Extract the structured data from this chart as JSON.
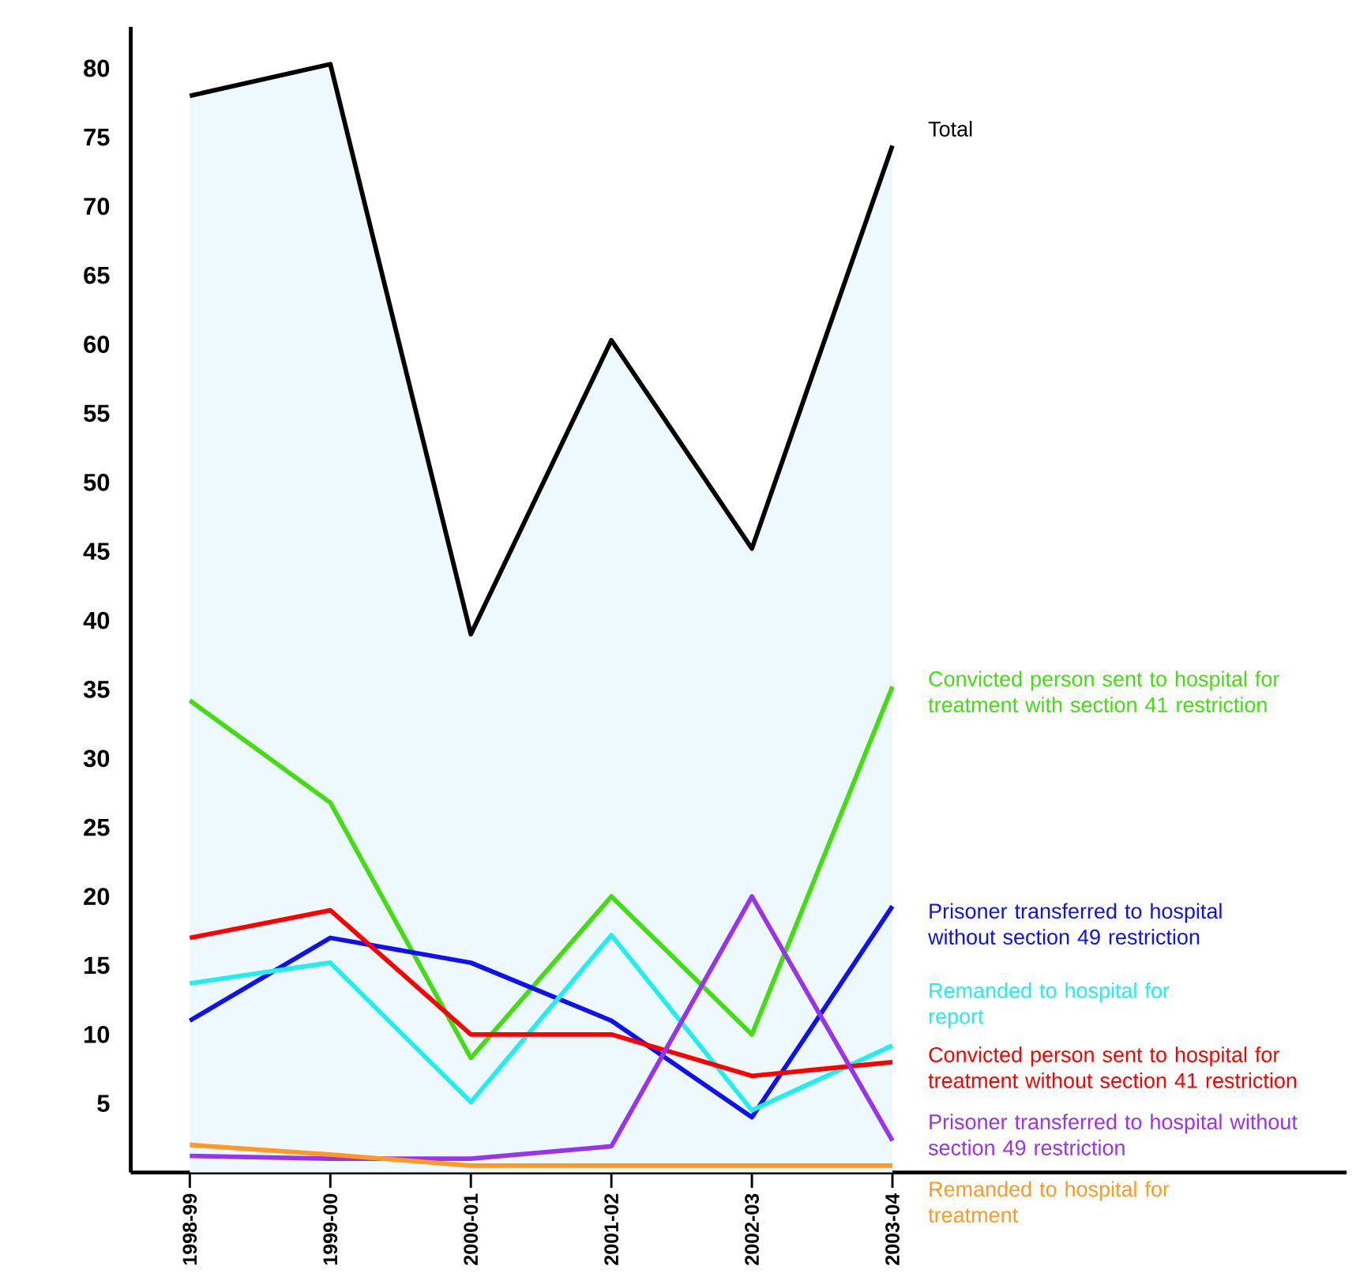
{
  "chart_data": {
    "type": "line",
    "categories": [
      "1998-99",
      "1999-00",
      "2000-01",
      "2001-02",
      "2002-03",
      "2003-04"
    ],
    "ylim": [
      0,
      83
    ],
    "yticks": [
      5,
      10,
      15,
      20,
      25,
      30,
      35,
      40,
      45,
      50,
      55,
      60,
      65,
      70,
      75,
      80
    ],
    "series": [
      {
        "name": "Total",
        "type": "area",
        "color": "#000000",
        "values": [
          78,
          80.3,
          39,
          60.3,
          45.2,
          74.4
        ]
      },
      {
        "name": "Convicted person sent to hospital for treatment with section 41 restriction",
        "color": "#44dd11",
        "values": [
          34.2,
          26.8,
          8.3,
          20,
          10,
          35.2
        ]
      },
      {
        "name": "Prisoner transferred to hospital without section 49 restriction",
        "color": "#1111ee",
        "values": [
          11,
          17,
          15.2,
          11,
          4,
          19.3
        ]
      },
      {
        "name": "Remanded to hospital for report",
        "color": "#22eeee",
        "values": [
          13.7,
          15.2,
          5.1,
          17.2,
          4.5,
          9.2
        ]
      },
      {
        "name": "Convicted person sent to hospital for treatment without section 41 restriction",
        "color": "#ff0000",
        "values": [
          17,
          19,
          10,
          10,
          7,
          8
        ]
      },
      {
        "name": "Prisoner transferred to hospital without section 49 restriction",
        "color": "#9933ee",
        "values": [
          1.2,
          1,
          1,
          1.9,
          20,
          2.3
        ]
      },
      {
        "name": "Remanded to hospital for treatment",
        "color": "#ff9922",
        "values": [
          2,
          1.3,
          0.5,
          0.5,
          0.5,
          0.5
        ]
      }
    ]
  }
}
